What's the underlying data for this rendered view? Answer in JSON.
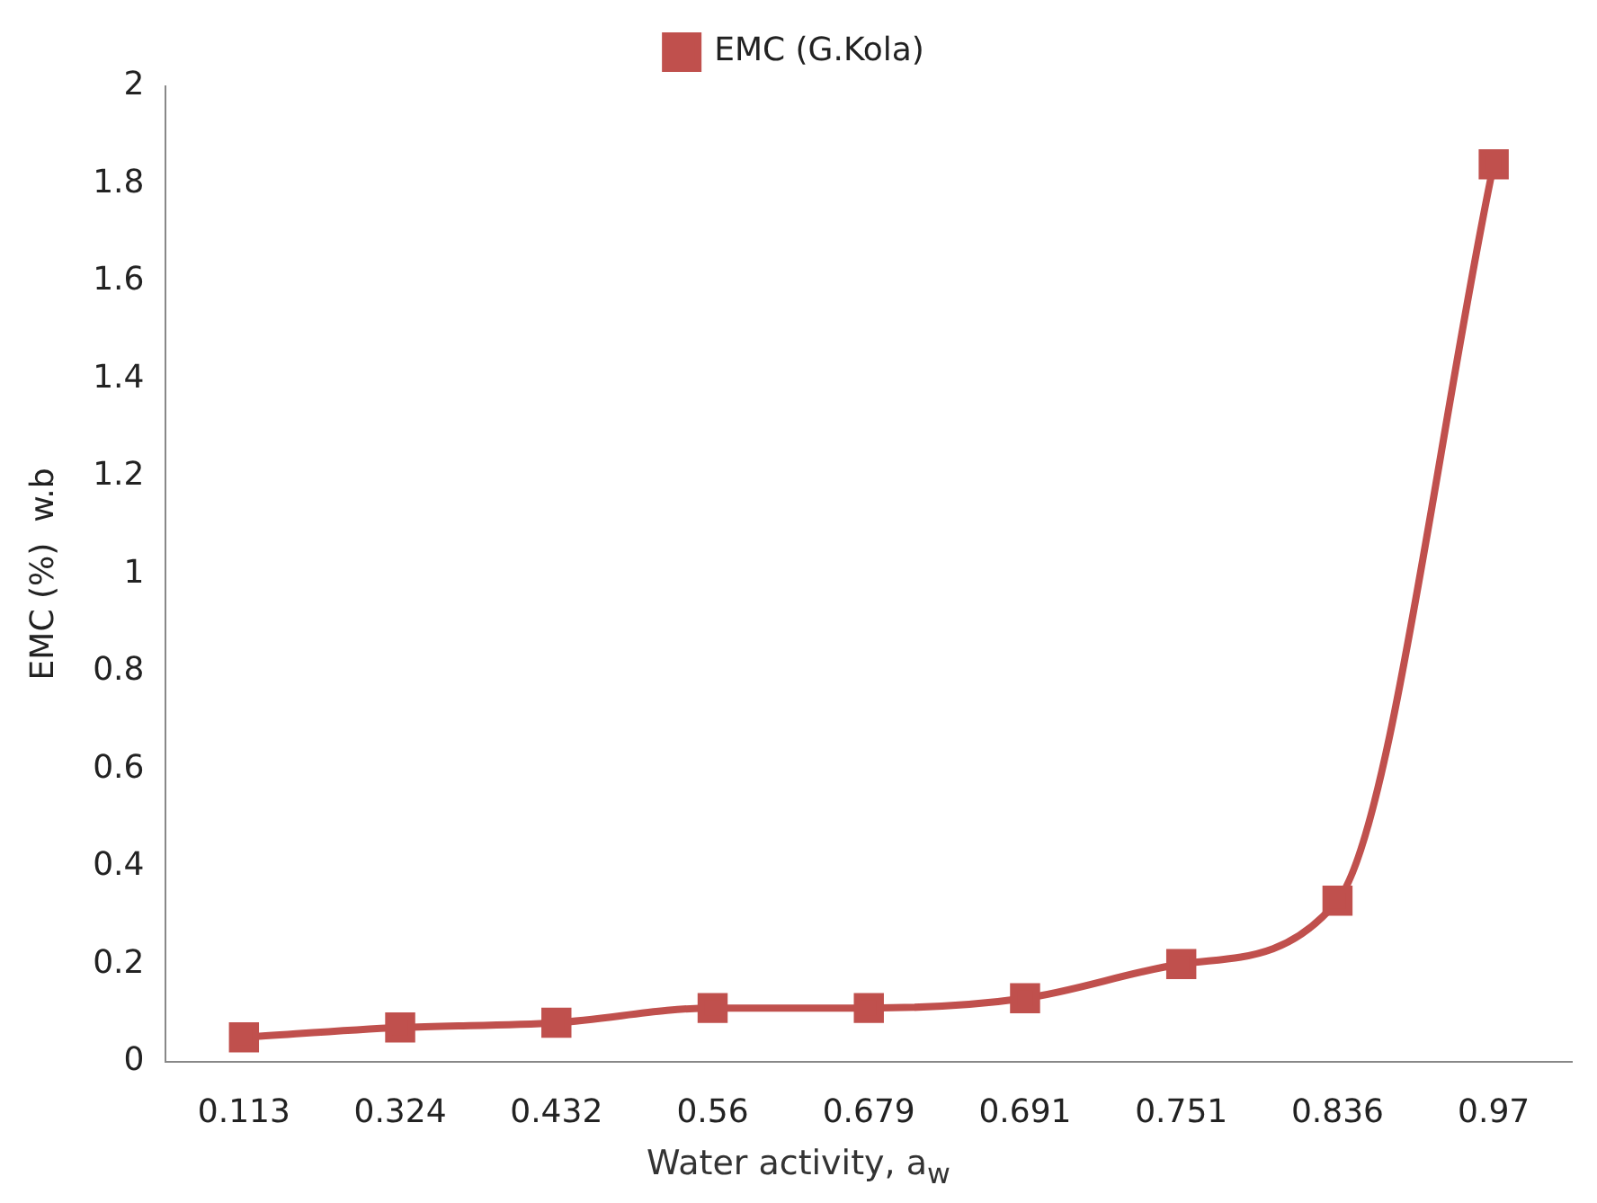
{
  "chart_data": {
    "type": "line",
    "xlabel": "Water activity, a$_{w}$",
    "ylabel": "EMC (%)  w.b",
    "categories": [
      "0.113",
      "0.324",
      "0.432",
      "0.56",
      "0.679",
      "0.691",
      "0.751",
      "0.836",
      "0.97"
    ],
    "series": [
      {
        "name": "EMC (G.Kola)",
        "color": "#c0504d",
        "values": [
          0.05,
          0.07,
          0.08,
          0.11,
          0.11,
          0.13,
          0.2,
          0.33,
          1.84
        ]
      }
    ],
    "ylim": [
      0,
      2
    ],
    "yticks": [
      0,
      0.2,
      0.4,
      0.6,
      0.8,
      1,
      1.2,
      1.4,
      1.6,
      1.8,
      2
    ],
    "grid": false,
    "legend": "top",
    "marker": "square",
    "line_style": "solid"
  }
}
